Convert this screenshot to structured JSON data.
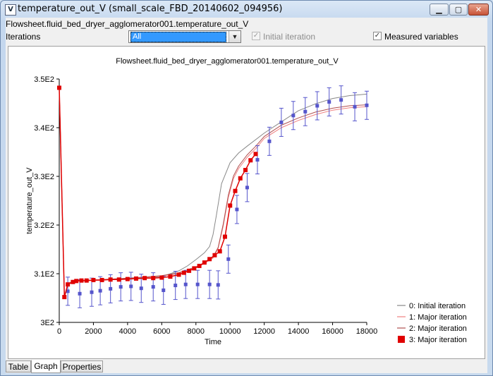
{
  "window": {
    "title": "temperature_out_V  (small_scale_FBD_20140602_094956)",
    "icon_glyph": "V",
    "minimize_glyph": "▁",
    "maximize_glyph": "▢",
    "close_glyph": "✕"
  },
  "header": {
    "path_label": "Flowsheet.fluid_bed_dryer_agglomerator001.temperature_out_V",
    "iterations_label": "Iterations",
    "iterations_value": "All",
    "initial_iteration_label": "Initial iteration",
    "initial_iteration_checked": true,
    "initial_iteration_enabled": false,
    "measured_label": "Measured variables",
    "measured_checked": true,
    "check_glyph": "✓"
  },
  "tabs": [
    {
      "label": "Table",
      "active": false
    },
    {
      "label": "Graph",
      "active": true
    },
    {
      "label": "Properties",
      "active": false
    }
  ],
  "chart_data": {
    "type": "line",
    "title": "Flowsheet.fluid_bed_dryer_agglomerator001.temperature_out_V",
    "xlabel": "Time",
    "ylabel": "temperature_out_V",
    "xlim": [
      0,
      18000
    ],
    "ylim": [
      300,
      350
    ],
    "x_ticks": [
      0,
      2000,
      4000,
      6000,
      8000,
      10000,
      12000,
      14000,
      16000,
      18000
    ],
    "y_ticks": [
      300,
      310,
      320,
      330,
      340,
      350
    ],
    "y_tick_labels": [
      "3E2",
      "3.1E2",
      "3.2E2",
      "3.3E2",
      "3.4E2",
      "3.5E2"
    ],
    "legend_position": "bottom-right",
    "grid": false,
    "series": [
      {
        "name": "0: Initial iteration",
        "color": "#888888",
        "style": "line",
        "x": [
          0,
          300,
          500,
          800,
          1000,
          2000,
          3000,
          4000,
          5000,
          6000,
          7000,
          7500,
          8000,
          8500,
          8800,
          9000,
          9200,
          9500,
          10000,
          10500,
          11000,
          12000,
          13000,
          14000,
          15000,
          16000,
          17000,
          18000
        ],
        "y": [
          348.2,
          305.2,
          307.9,
          308.5,
          308.6,
          308.7,
          308.8,
          308.9,
          309.0,
          309.4,
          310.6,
          311.6,
          312.9,
          314.3,
          315.6,
          318.0,
          322.0,
          328.5,
          332.8,
          334.8,
          336.2,
          338.9,
          341.2,
          343.5,
          344.9,
          346.0,
          346.6,
          346.9
        ]
      },
      {
        "name": "1: Major iteration",
        "color": "#f08080",
        "style": "line",
        "x": [
          0,
          300,
          500,
          800,
          1000,
          2000,
          3000,
          4000,
          5000,
          6000,
          7000,
          8000,
          8500,
          9000,
          9300,
          9600,
          9900,
          10200,
          10500,
          11000,
          11500,
          12000,
          13000,
          14000,
          15000,
          16000,
          17000,
          18000
        ],
        "y": [
          348.2,
          305.2,
          307.9,
          308.4,
          308.5,
          308.6,
          308.8,
          309.0,
          309.2,
          309.5,
          310.0,
          311.2,
          312.1,
          313.2,
          315.2,
          319.8,
          325.7,
          329.6,
          331.6,
          333.9,
          335.7,
          337.8,
          340.0,
          341.5,
          342.7,
          343.6,
          344.1,
          344.3
        ]
      },
      {
        "name": "2: Major iteration",
        "color": "#b05050",
        "style": "line",
        "x": [
          0,
          300,
          500,
          800,
          1000,
          2000,
          3000,
          4000,
          5000,
          6000,
          7000,
          8000,
          8500,
          9000,
          9300,
          9600,
          9900,
          10200,
          10500,
          11000,
          11500,
          12000,
          13000,
          14000,
          15000,
          16000,
          17000,
          18000
        ],
        "y": [
          348.2,
          305.2,
          307.9,
          308.5,
          308.6,
          308.7,
          308.9,
          309.1,
          309.3,
          309.6,
          310.2,
          311.4,
          312.3,
          313.4,
          315.4,
          320.2,
          326.2,
          330.1,
          332.1,
          334.4,
          336.2,
          338.2,
          340.5,
          342.0,
          343.2,
          344.0,
          344.5,
          344.7
        ]
      },
      {
        "name": "3: Major iteration",
        "color": "#e00000",
        "style": "line+marker",
        "x": [
          0,
          300,
          500,
          800,
          1000,
          1300,
          1600,
          2000,
          2500,
          3000,
          3500,
          4000,
          4500,
          5000,
          5500,
          6000,
          6500,
          7000,
          7300,
          7600,
          7900,
          8200,
          8500,
          8800,
          9100,
          9400,
          9700,
          10000,
          10300,
          10600,
          10900,
          11200,
          11500
        ],
        "y": [
          348.2,
          305.2,
          307.8,
          308.3,
          308.5,
          308.6,
          308.6,
          308.7,
          308.7,
          308.8,
          308.8,
          308.9,
          309.0,
          309.1,
          309.1,
          309.2,
          309.4,
          309.8,
          310.2,
          310.6,
          311.1,
          311.6,
          312.3,
          313.0,
          313.8,
          314.6,
          317.6,
          324.0,
          327.0,
          329.6,
          331.3,
          333.3,
          334.6
        ]
      },
      {
        "name": "Measured variables",
        "color": "#5555cc",
        "style": "marker+errorbar",
        "x": [
          500,
          1200,
          1900,
          2400,
          3000,
          3600,
          4200,
          4800,
          5500,
          6100,
          6800,
          7400,
          8100,
          8800,
          9300,
          9900,
          10400,
          11000,
          11600,
          12300,
          13000,
          13700,
          14400,
          15100,
          15800,
          16500,
          17300,
          18000
        ],
        "y": [
          306.4,
          305.9,
          306.2,
          306.5,
          306.9,
          307.3,
          307.4,
          307.0,
          307.3,
          306.6,
          307.6,
          307.8,
          307.8,
          307.8,
          307.7,
          313.0,
          323.2,
          327.7,
          333.4,
          337.2,
          341.1,
          342.5,
          343.3,
          344.5,
          345.3,
          345.7,
          344.3,
          344.6
        ],
        "error": [
          2.9,
          2.9,
          2.9,
          2.9,
          2.9,
          2.9,
          2.9,
          2.9,
          2.9,
          2.9,
          2.9,
          2.9,
          2.9,
          2.9,
          2.9,
          2.9,
          2.9,
          2.9,
          2.9,
          2.9,
          2.9,
          2.9,
          2.9,
          2.9,
          2.9,
          2.9,
          2.9,
          2.9
        ]
      }
    ]
  }
}
